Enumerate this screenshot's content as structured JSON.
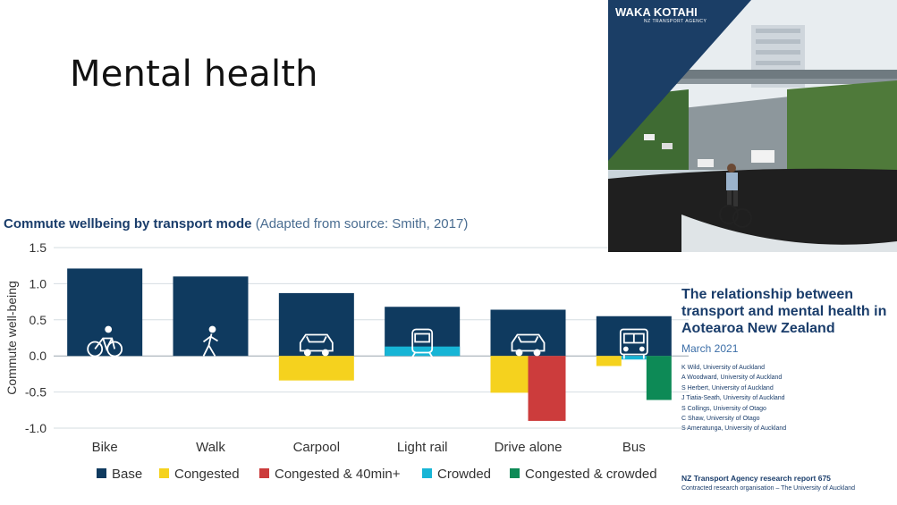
{
  "slide_title": "Mental health",
  "chart_title_bold": "Commute wellbeing by transport mode",
  "chart_title_source": "(Adapted from source: Smith, 2017)",
  "colors": {
    "base": "#0f3a5f",
    "congested": "#f5d21e",
    "congested_40": "#cc3c3c",
    "crowded": "#17b5d6",
    "congested_crowded": "#0d8a56",
    "text": "#333333"
  },
  "chart_data": {
    "type": "bar",
    "title": "Commute wellbeing by transport mode",
    "ylabel": "Commute well-being",
    "ylim": [
      -1.0,
      1.5
    ],
    "yticks": [
      "1.5",
      "1.0",
      "0.5",
      "0.0",
      "-0.5",
      "-1.0"
    ],
    "categories": [
      "Bike",
      "Walk",
      "Carpool",
      "Light rail",
      "Drive alone",
      "Bus"
    ],
    "icons": [
      "bicycle-icon",
      "walk-icon",
      "car-icon",
      "tram-icon",
      "car-icon",
      "bus-icon"
    ],
    "series": [
      {
        "name": "Base",
        "values": [
          1.21,
          1.1,
          0.87,
          0.68,
          0.64,
          0.55
        ]
      },
      {
        "name": "Congested",
        "values": [
          null,
          null,
          -0.34,
          null,
          -0.51,
          -0.14
        ]
      },
      {
        "name": "Congested & 40min+",
        "values": [
          null,
          null,
          null,
          null,
          -0.9,
          null
        ]
      },
      {
        "name": "Crowded",
        "values": [
          null,
          null,
          null,
          0.13,
          null,
          -0.05
        ]
      },
      {
        "name": "Congested & crowded",
        "values": [
          null,
          null,
          null,
          null,
          null,
          -0.61
        ]
      }
    ],
    "legend": [
      "Base",
      "Congested",
      "Congested & 40min+",
      "Crowded",
      "Congested & crowded"
    ],
    "legend_position": "bottom"
  },
  "report": {
    "logo_name": "WAKA KOTAHI",
    "logo_sub": "NZ TRANSPORT AGENCY",
    "title": "The relationship between transport and mental health in Aotearoa New Zealand",
    "date": "March 2021",
    "authors": [
      "K Wild, University of Auckland",
      "A Woodward, University of Auckland",
      "S Herbert, University of Auckland",
      "J Tiatia-Seath, University of Auckland",
      "S Collings, University of Otago",
      "C Shaw, University of Otago",
      "S Ameratunga, University of Auckland"
    ],
    "footer": "NZ Transport Agency research report 675",
    "contract": "Contracted research organisation – The University of Auckland"
  }
}
